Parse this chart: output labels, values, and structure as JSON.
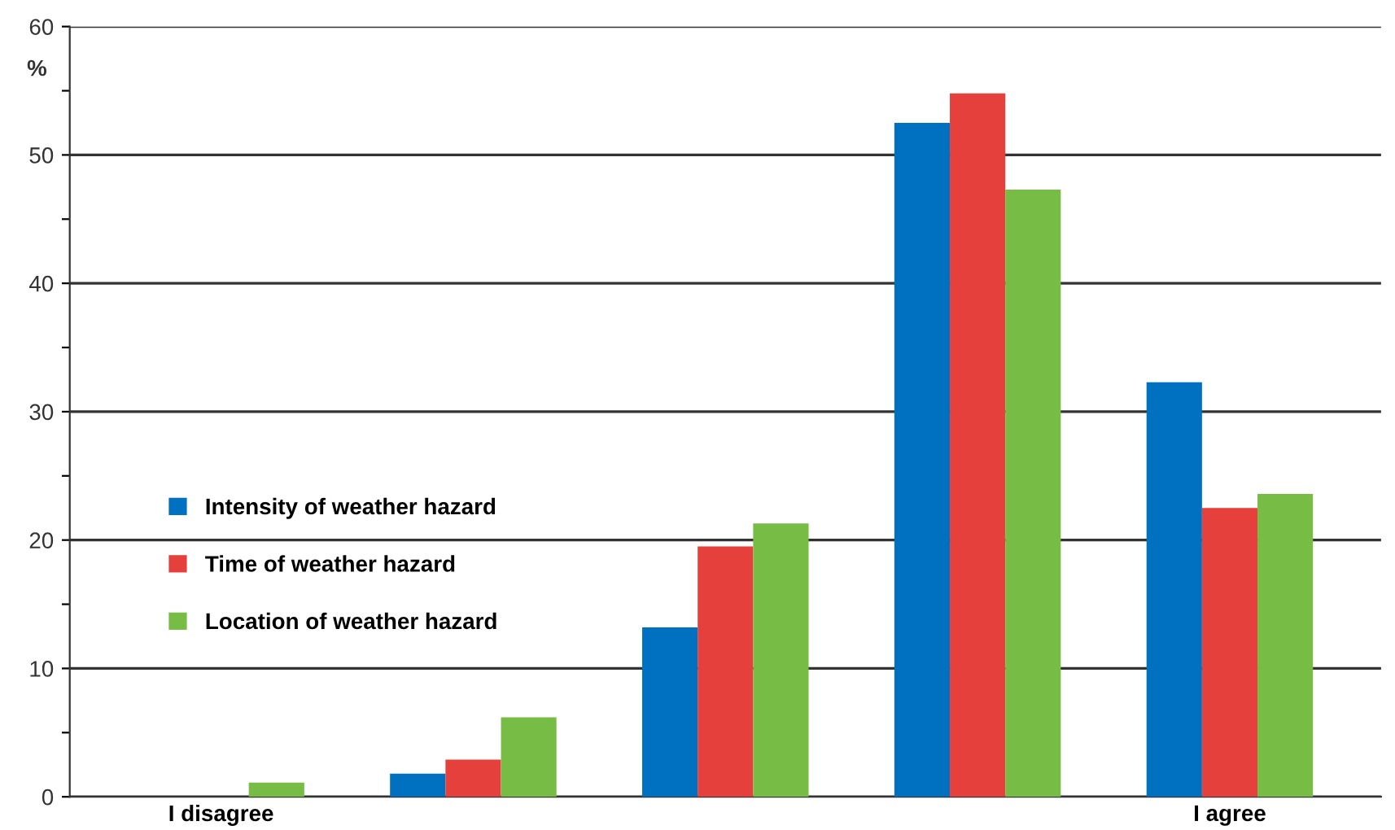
{
  "chart_data": {
    "type": "bar",
    "ylabel": "%",
    "categories": [
      "I disagree",
      null,
      null,
      null,
      "I agree"
    ],
    "series": [
      {
        "name": "Intensity of weather hazard",
        "color": "#0070c0",
        "values": [
          0,
          1.8,
          13.2,
          52.5,
          32.3
        ]
      },
      {
        "name": "Time of weather hazard",
        "color": "#e5403b",
        "values": [
          0,
          2.9,
          19.5,
          54.8,
          22.5
        ]
      },
      {
        "name": "Location of weather hazard",
        "color": "#77bd45",
        "values": [
          1.1,
          6.2,
          21.3,
          47.3,
          23.6
        ]
      }
    ],
    "ylim": [
      0,
      60
    ],
    "yticks": [
      0,
      {
        "value": 5,
        "label": null
      },
      10,
      {
        "value": 15,
        "label": null
      },
      20,
      {
        "value": 25,
        "label": null
      },
      30,
      {
        "value": 35,
        "label": null
      },
      40,
      {
        "value": 45,
        "label": null
      },
      50,
      {
        "value": 55,
        "label": null
      },
      60
    ],
    "grid": "y",
    "legend": "center left"
  }
}
